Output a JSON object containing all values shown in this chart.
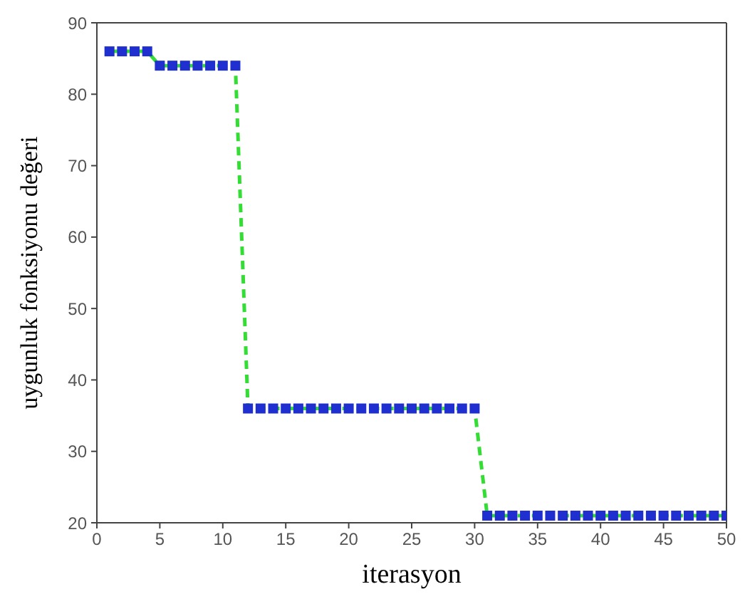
{
  "chart_data": {
    "type": "line",
    "xlabel": "iterasyon",
    "ylabel": "uygunluk fonksiyonu değeri",
    "x": [
      1,
      2,
      3,
      4,
      5,
      6,
      7,
      8,
      9,
      10,
      11,
      12,
      13,
      14,
      15,
      16,
      17,
      18,
      19,
      20,
      21,
      22,
      23,
      24,
      25,
      26,
      27,
      28,
      29,
      30,
      31,
      32,
      33,
      34,
      35,
      36,
      37,
      38,
      39,
      40,
      41,
      42,
      43,
      44,
      45,
      46,
      47,
      48,
      49,
      50
    ],
    "series": [
      {
        "color": "#33dd33",
        "colors": [
          "#1f2fd0",
          "#1f2fd0",
          "#1f2fd0",
          "#1f2fd0",
          "#1f2fd0",
          "#1f2fd0",
          "#1f2fd0",
          "#1f2fd0",
          "#1f2fd0",
          "#1f2fd0",
          "#1f2fd0",
          "#1f2fd0",
          "#1f2fd0",
          "#1f2fd0",
          "#1f2fd0",
          "#1f2fd0",
          "#1f2fd0",
          "#1f2fd0",
          "#1f2fd0",
          "#1f2fd0",
          "#1f2fd0",
          "#1f2fd0",
          "#1f2fd0",
          "#1f2fd0",
          "#1f2fd0",
          "#1f2fd0",
          "#1f2fd0",
          "#1f2fd0",
          "#1f2fd0",
          "#1f2fd0",
          "#1f2fd0",
          "#1f2fd0",
          "#1f2fd0",
          "#1f2fd0",
          "#1f2fd0",
          "#1f2fd0",
          "#1f2fd0",
          "#1f2fd0",
          "#1f2fd0",
          "#1f2fd0",
          "#1f2fd0",
          "#1f2fd0",
          "#1f2fd0",
          "#1f2fd0",
          "#1f2fd0",
          "#1f2fd0",
          "#1f2fd0",
          "#1f2fd0",
          "#1f2fd0",
          "#1f2fd0"
        ],
        "values": [
          86,
          86,
          86,
          86,
          84,
          84,
          84,
          84,
          84,
          84,
          84,
          36,
          36,
          36,
          36,
          36,
          36,
          36,
          36,
          36,
          36,
          36,
          36,
          36,
          36,
          36,
          36,
          36,
          36,
          36,
          21,
          21,
          21,
          21,
          21,
          21,
          21,
          21,
          21,
          21,
          21,
          21,
          21,
          21,
          21,
          21,
          21,
          21,
          21,
          21
        ]
      }
    ],
    "xlim": [
      0,
      50
    ],
    "xticks": [
      0,
      5,
      10,
      15,
      20,
      25,
      30,
      35,
      40,
      45,
      50
    ],
    "ylim": [
      20,
      90
    ],
    "yticks": [
      20,
      30,
      40,
      50,
      60,
      70,
      80,
      90
    ],
    "marker": "square",
    "line_style": "dashed",
    "grid": false,
    "legend": false
  }
}
